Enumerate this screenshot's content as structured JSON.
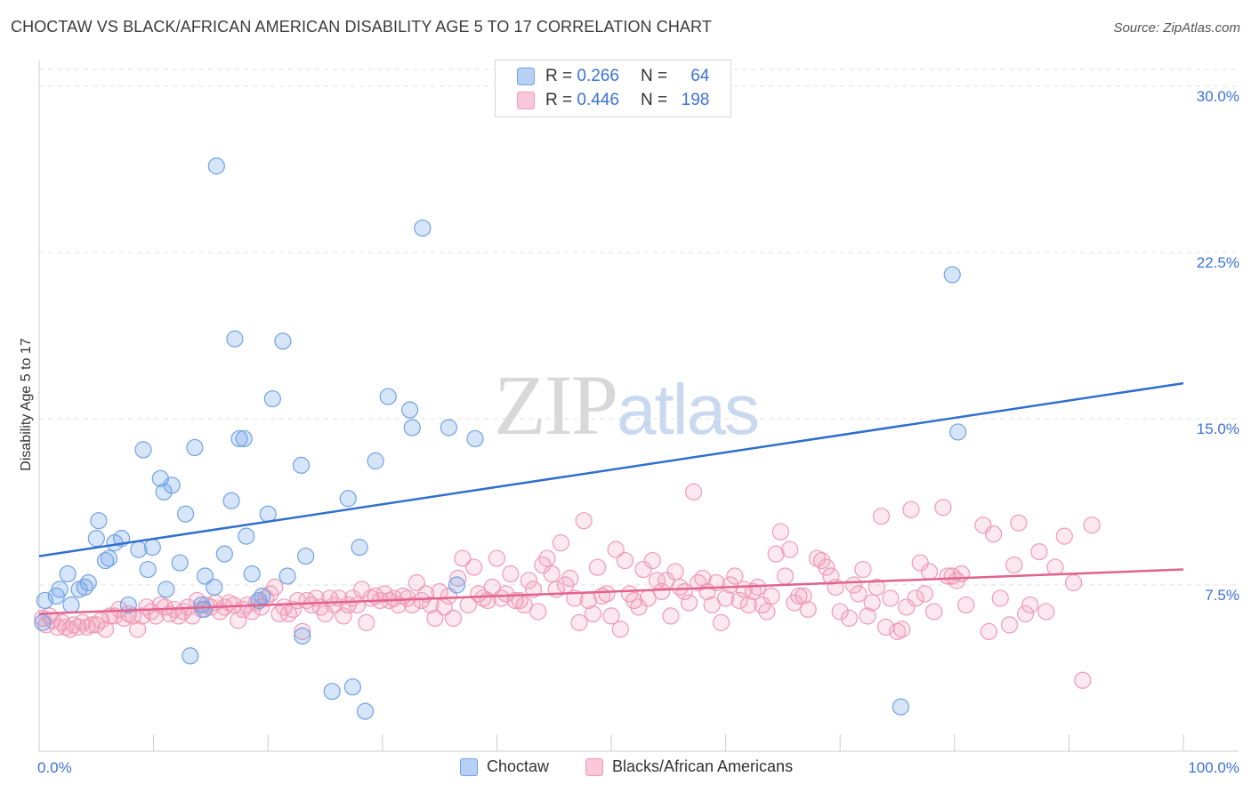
{
  "title": "CHOCTAW VS BLACK/AFRICAN AMERICAN DISABILITY AGE 5 TO 17 CORRELATION CHART",
  "source": "Source: ZipAtlas.com",
  "watermark": {
    "part1": "ZIP",
    "part2": "atlas"
  },
  "legend_top": [
    {
      "r_label": "R =",
      "r_value": "0.266",
      "n_label": "N =",
      "n_value": "64"
    },
    {
      "r_label": "R =",
      "r_value": "0.446",
      "n_label": "N =",
      "n_value": "198"
    }
  ],
  "chart_data": {
    "type": "scatter",
    "ylabel": "Disability Age 5 to 17",
    "xlim": [
      0,
      100
    ],
    "ylim": [
      0,
      31
    ],
    "x_tick_labels": [
      "0.0%",
      "100.0%"
    ],
    "y_ticks": [
      7.5,
      15.0,
      22.5,
      30.0
    ],
    "y_tick_labels": [
      "7.5%",
      "15.0%",
      "22.5%",
      "30.0%"
    ],
    "grid": true,
    "colors": {
      "choctaw": "#6fa3e6",
      "choctaw_line": "#2f6fcf",
      "black": "#f09ab6",
      "black_line": "#e2628d",
      "tick_label": "#3c72d6"
    },
    "series": [
      {
        "name": "Choctaw",
        "trend": [
          [
            0,
            8.8
          ],
          [
            100,
            16.6
          ]
        ],
        "points": [
          [
            0.3,
            5.8
          ],
          [
            0.5,
            6.8
          ],
          [
            1.5,
            7.0
          ],
          [
            1.8,
            7.3
          ],
          [
            2.5,
            8.0
          ],
          [
            2.8,
            6.6
          ],
          [
            3.5,
            7.3
          ],
          [
            4.0,
            7.4
          ],
          [
            4.3,
            7.6
          ],
          [
            5.0,
            9.6
          ],
          [
            5.2,
            10.4
          ],
          [
            5.8,
            8.6
          ],
          [
            6.1,
            8.7
          ],
          [
            6.6,
            9.4
          ],
          [
            7.2,
            9.6
          ],
          [
            7.8,
            6.6
          ],
          [
            8.7,
            9.1
          ],
          [
            9.1,
            13.6
          ],
          [
            9.5,
            8.2
          ],
          [
            9.9,
            9.2
          ],
          [
            10.6,
            12.3
          ],
          [
            10.9,
            11.7
          ],
          [
            11.1,
            7.3
          ],
          [
            11.6,
            12.0
          ],
          [
            12.3,
            8.5
          ],
          [
            12.8,
            10.7
          ],
          [
            13.2,
            4.3
          ],
          [
            13.6,
            13.7
          ],
          [
            14.2,
            6.6
          ],
          [
            14.4,
            6.4
          ],
          [
            14.5,
            7.9
          ],
          [
            15.3,
            7.4
          ],
          [
            15.5,
            26.4
          ],
          [
            16.2,
            8.9
          ],
          [
            16.8,
            11.3
          ],
          [
            17.1,
            18.6
          ],
          [
            17.5,
            14.1
          ],
          [
            17.9,
            14.1
          ],
          [
            18.1,
            9.7
          ],
          [
            18.6,
            8.0
          ],
          [
            19.2,
            6.8
          ],
          [
            19.5,
            7.0
          ],
          [
            20.0,
            10.7
          ],
          [
            20.4,
            15.9
          ],
          [
            21.3,
            18.5
          ],
          [
            21.7,
            7.9
          ],
          [
            22.9,
            12.9
          ],
          [
            23.3,
            8.8
          ],
          [
            23.0,
            5.2
          ],
          [
            25.6,
            2.7
          ],
          [
            27.0,
            11.4
          ],
          [
            27.4,
            2.9
          ],
          [
            28.0,
            9.2
          ],
          [
            28.5,
            1.8
          ],
          [
            29.4,
            13.1
          ],
          [
            30.5,
            16.0
          ],
          [
            32.4,
            15.4
          ],
          [
            32.6,
            14.6
          ],
          [
            33.5,
            23.6
          ],
          [
            35.8,
            14.6
          ],
          [
            36.5,
            7.5
          ],
          [
            38.1,
            14.1
          ],
          [
            75.3,
            2.0
          ],
          [
            79.8,
            21.5
          ],
          [
            80.3,
            14.4
          ]
        ]
      },
      {
        "name": "Blacks/African Americans",
        "trend": [
          [
            0,
            6.2
          ],
          [
            100,
            8.2
          ]
        ],
        "points": [
          [
            0.3,
            6.0
          ],
          [
            0.6,
            5.7
          ],
          [
            0.9,
            6.1
          ],
          [
            1.2,
            5.9
          ],
          [
            1.6,
            5.6
          ],
          [
            2.0,
            5.8
          ],
          [
            2.3,
            5.6
          ],
          [
            2.7,
            5.5
          ],
          [
            3.0,
            5.7
          ],
          [
            3.4,
            5.6
          ],
          [
            3.8,
            5.8
          ],
          [
            4.2,
            5.6
          ],
          [
            4.6,
            5.7
          ],
          [
            5.0,
            5.7
          ],
          [
            5.4,
            5.9
          ],
          [
            5.8,
            5.5
          ],
          [
            6.2,
            6.1
          ],
          [
            6.6,
            6.1
          ],
          [
            7.0,
            6.4
          ],
          [
            7.4,
            6.0
          ],
          [
            7.8,
            6.2
          ],
          [
            8.2,
            6.1
          ],
          [
            8.6,
            5.5
          ],
          [
            9.0,
            6.1
          ],
          [
            9.4,
            6.5
          ],
          [
            9.8,
            6.3
          ],
          [
            10.2,
            6.1
          ],
          [
            10.6,
            6.6
          ],
          [
            11.0,
            6.5
          ],
          [
            11.4,
            6.2
          ],
          [
            11.8,
            6.4
          ],
          [
            12.2,
            6.1
          ],
          [
            12.6,
            6.3
          ],
          [
            13.0,
            6.5
          ],
          [
            13.4,
            6.1
          ],
          [
            13.8,
            6.8
          ],
          [
            14.2,
            6.4
          ],
          [
            14.6,
            6.6
          ],
          [
            15.0,
            6.5
          ],
          [
            15.4,
            6.7
          ],
          [
            15.8,
            6.3
          ],
          [
            16.2,
            6.5
          ],
          [
            16.6,
            6.7
          ],
          [
            17.0,
            6.6
          ],
          [
            17.4,
            5.9
          ],
          [
            17.8,
            6.4
          ],
          [
            18.2,
            6.6
          ],
          [
            18.6,
            6.3
          ],
          [
            19.0,
            6.7
          ],
          [
            19.4,
            6.5
          ],
          [
            19.8,
            6.9
          ],
          [
            20.2,
            7.1
          ],
          [
            20.6,
            7.4
          ],
          [
            21.0,
            6.2
          ],
          [
            21.4,
            6.5
          ],
          [
            21.8,
            6.2
          ],
          [
            22.2,
            6.4
          ],
          [
            22.6,
            6.8
          ],
          [
            23.0,
            5.4
          ],
          [
            23.4,
            6.8
          ],
          [
            23.8,
            6.6
          ],
          [
            24.2,
            6.9
          ],
          [
            24.6,
            6.5
          ],
          [
            25.0,
            6.2
          ],
          [
            25.4,
            6.9
          ],
          [
            25.8,
            6.6
          ],
          [
            26.2,
            6.9
          ],
          [
            26.6,
            6.1
          ],
          [
            27.0,
            6.6
          ],
          [
            27.4,
            6.9
          ],
          [
            27.8,
            6.6
          ],
          [
            28.2,
            7.3
          ],
          [
            28.6,
            5.8
          ],
          [
            29.0,
            6.9
          ],
          [
            29.4,
            7.0
          ],
          [
            29.8,
            6.8
          ],
          [
            30.2,
            7.1
          ],
          [
            30.6,
            6.8
          ],
          [
            31.0,
            6.9
          ],
          [
            31.4,
            6.6
          ],
          [
            31.8,
            7.0
          ],
          [
            32.2,
            6.9
          ],
          [
            32.6,
            6.6
          ],
          [
            33.0,
            7.6
          ],
          [
            33.4,
            6.8
          ],
          [
            33.8,
            7.1
          ],
          [
            34.2,
            6.6
          ],
          [
            34.6,
            6.0
          ],
          [
            35.0,
            7.2
          ],
          [
            35.4,
            6.5
          ],
          [
            35.8,
            7.0
          ],
          [
            36.2,
            6.0
          ],
          [
            36.6,
            7.8
          ],
          [
            37.0,
            8.7
          ],
          [
            37.5,
            6.6
          ],
          [
            38.0,
            8.3
          ],
          [
            38.4,
            7.1
          ],
          [
            38.8,
            6.9
          ],
          [
            39.2,
            6.8
          ],
          [
            39.6,
            7.4
          ],
          [
            40.0,
            8.7
          ],
          [
            40.4,
            6.9
          ],
          [
            40.8,
            7.1
          ],
          [
            41.2,
            8.0
          ],
          [
            41.6,
            6.8
          ],
          [
            42.0,
            6.8
          ],
          [
            42.4,
            6.6
          ],
          [
            42.8,
            7.7
          ],
          [
            43.2,
            7.3
          ],
          [
            43.6,
            6.3
          ],
          [
            44.0,
            8.4
          ],
          [
            44.4,
            8.7
          ],
          [
            44.8,
            8.0
          ],
          [
            45.2,
            7.3
          ],
          [
            45.6,
            9.4
          ],
          [
            46.0,
            7.5
          ],
          [
            46.4,
            7.8
          ],
          [
            46.8,
            6.9
          ],
          [
            47.2,
            5.8
          ],
          [
            47.6,
            10.4
          ],
          [
            48.0,
            6.8
          ],
          [
            48.4,
            6.2
          ],
          [
            48.8,
            8.3
          ],
          [
            49.2,
            7.0
          ],
          [
            49.6,
            7.1
          ],
          [
            50.0,
            6.1
          ],
          [
            50.4,
            9.1
          ],
          [
            50.8,
            5.5
          ],
          [
            51.2,
            8.6
          ],
          [
            51.6,
            7.1
          ],
          [
            52.0,
            6.8
          ],
          [
            52.4,
            6.5
          ],
          [
            52.8,
            8.2
          ],
          [
            53.2,
            6.9
          ],
          [
            53.6,
            8.6
          ],
          [
            54.0,
            7.7
          ],
          [
            54.4,
            7.2
          ],
          [
            54.8,
            7.7
          ],
          [
            55.2,
            6.1
          ],
          [
            55.6,
            8.1
          ],
          [
            56.0,
            7.4
          ],
          [
            56.4,
            7.2
          ],
          [
            56.8,
            6.7
          ],
          [
            57.2,
            11.7
          ],
          [
            57.6,
            7.6
          ],
          [
            58.0,
            7.8
          ],
          [
            58.4,
            7.2
          ],
          [
            58.8,
            6.6
          ],
          [
            59.2,
            7.6
          ],
          [
            59.6,
            5.8
          ],
          [
            60.0,
            6.9
          ],
          [
            60.4,
            7.5
          ],
          [
            60.8,
            7.9
          ],
          [
            61.2,
            6.8
          ],
          [
            61.6,
            7.3
          ],
          [
            62.0,
            6.6
          ],
          [
            62.4,
            7.2
          ],
          [
            62.8,
            7.4
          ],
          [
            63.2,
            6.6
          ],
          [
            63.6,
            6.3
          ],
          [
            64.0,
            7.0
          ],
          [
            64.4,
            8.9
          ],
          [
            64.8,
            9.9
          ],
          [
            65.2,
            7.9
          ],
          [
            65.6,
            9.1
          ],
          [
            66.0,
            6.7
          ],
          [
            66.4,
            7.0
          ],
          [
            66.8,
            7.0
          ],
          [
            67.2,
            6.4
          ],
          [
            68.0,
            8.7
          ],
          [
            68.4,
            8.6
          ],
          [
            68.8,
            8.3
          ],
          [
            69.2,
            7.9
          ],
          [
            69.6,
            7.4
          ],
          [
            70.0,
            6.3
          ],
          [
            70.8,
            6.0
          ],
          [
            71.2,
            7.5
          ],
          [
            71.6,
            7.1
          ],
          [
            72.0,
            8.2
          ],
          [
            72.4,
            6.1
          ],
          [
            72.8,
            6.7
          ],
          [
            73.2,
            7.4
          ],
          [
            73.6,
            10.6
          ],
          [
            74.0,
            5.6
          ],
          [
            74.4,
            6.9
          ],
          [
            75.0,
            5.4
          ],
          [
            75.4,
            5.5
          ],
          [
            75.8,
            6.5
          ],
          [
            76.2,
            10.9
          ],
          [
            76.6,
            6.9
          ],
          [
            77.0,
            8.5
          ],
          [
            77.4,
            7.1
          ],
          [
            77.8,
            8.1
          ],
          [
            78.2,
            6.3
          ],
          [
            79.0,
            11.0
          ],
          [
            79.4,
            7.9
          ],
          [
            79.8,
            7.9
          ],
          [
            80.2,
            7.7
          ],
          [
            80.6,
            8.0
          ],
          [
            81.0,
            6.6
          ],
          [
            82.5,
            10.2
          ],
          [
            83.0,
            5.4
          ],
          [
            83.4,
            9.8
          ],
          [
            84.0,
            6.9
          ],
          [
            84.8,
            5.7
          ],
          [
            85.2,
            8.4
          ],
          [
            85.6,
            10.3
          ],
          [
            86.2,
            6.2
          ],
          [
            86.6,
            6.6
          ],
          [
            87.4,
            9.0
          ],
          [
            88.0,
            6.3
          ],
          [
            88.8,
            8.3
          ],
          [
            89.6,
            9.7
          ],
          [
            90.4,
            7.6
          ],
          [
            91.2,
            3.2
          ],
          [
            92.0,
            10.2
          ]
        ]
      }
    ]
  },
  "legend_bottom": [
    "Choctaw",
    "Blacks/African Americans"
  ]
}
